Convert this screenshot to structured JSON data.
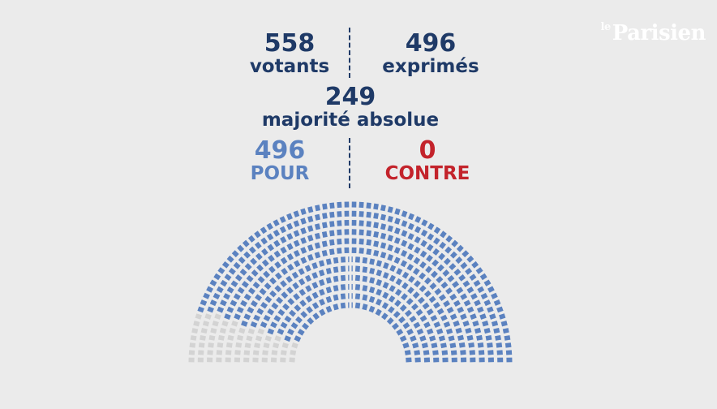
{
  "branding": {
    "logo_prefix": "le",
    "logo_text": "Parisien"
  },
  "results": {
    "votants": {
      "value": "558",
      "label": "votants"
    },
    "exprimes": {
      "value": "496",
      "label": "exprimés"
    },
    "majorite": {
      "value": "249",
      "label": "majorité absolue"
    },
    "pour": {
      "value": "496",
      "label": "POUR"
    },
    "contre": {
      "value": "0",
      "label": "CONTRE"
    }
  },
  "hemicycle": {
    "total_seats": 558,
    "pour_seats": 496,
    "contre_seats": 0,
    "colors": {
      "pour": "#5b82c0",
      "absent": "#d3d3d3",
      "contre": "#c3232b"
    }
  }
}
